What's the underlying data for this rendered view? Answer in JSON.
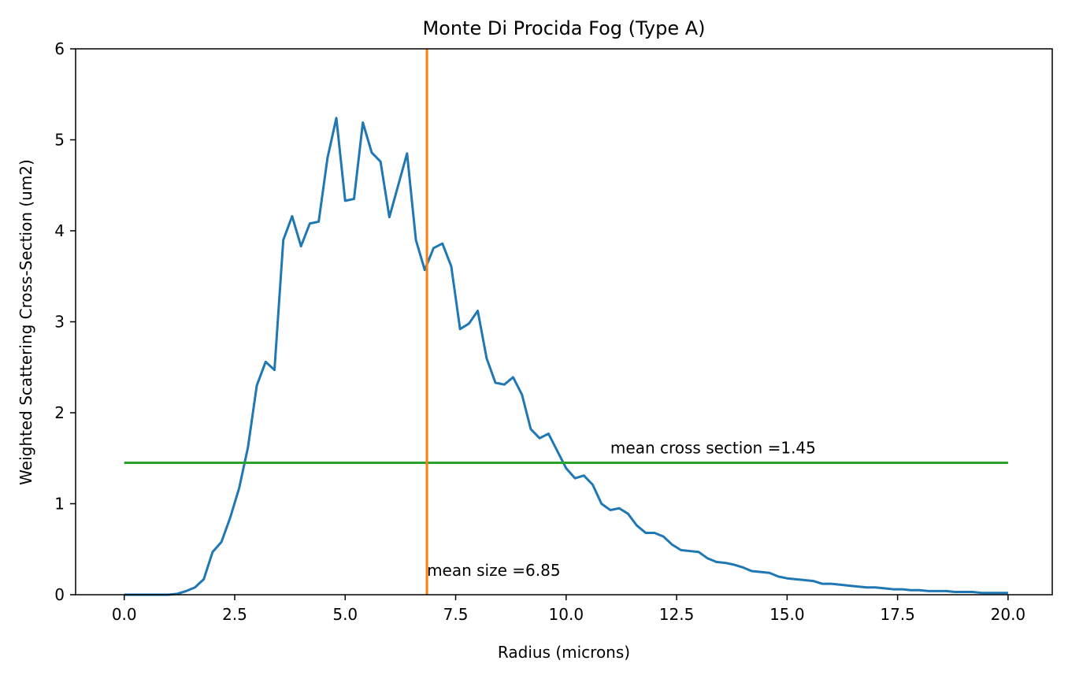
{
  "chart_data": {
    "type": "line",
    "title": "Monte Di Procida Fog (Type A)",
    "xlabel": "Radius (microns)",
    "ylabel": "Weighted Scattering Cross-Section (um2)",
    "xlim": [
      -1.1,
      21.0
    ],
    "ylim": [
      0,
      6
    ],
    "xticks": [
      0.0,
      2.5,
      5.0,
      7.5,
      10.0,
      12.5,
      15.0,
      17.5,
      20.0
    ],
    "xtick_labels": [
      "0.0",
      "2.5",
      "5.0",
      "7.5",
      "10.0",
      "12.5",
      "15.0",
      "17.5",
      "20.0"
    ],
    "yticks": [
      0,
      1,
      2,
      3,
      4,
      5,
      6
    ],
    "ytick_labels": [
      "0",
      "1",
      "2",
      "3",
      "4",
      "5",
      "6"
    ],
    "grid": false,
    "series": [
      {
        "color": "#1f77b4",
        "x": [
          0.0,
          0.2,
          0.4,
          0.6,
          0.8,
          1.0,
          1.2,
          1.4,
          1.6,
          1.8,
          2.0,
          2.2,
          2.4,
          2.6,
          2.8,
          3.0,
          3.2,
          3.4,
          3.6,
          3.8,
          4.0,
          4.2,
          4.4,
          4.6,
          4.8,
          5.0,
          5.2,
          5.4,
          5.6,
          5.8,
          6.0,
          6.2,
          6.4,
          6.6,
          6.8,
          7.0,
          7.2,
          7.4,
          7.6,
          7.8,
          8.0,
          8.2,
          8.4,
          8.6,
          8.8,
          9.0,
          9.2,
          9.4,
          9.6,
          9.8,
          10.0,
          10.2,
          10.4,
          10.6,
          10.8,
          11.0,
          11.2,
          11.4,
          11.6,
          11.8,
          12.0,
          12.2,
          12.4,
          12.6,
          12.8,
          13.0,
          13.2,
          13.4,
          13.6,
          13.8,
          14.0,
          14.2,
          14.4,
          14.6,
          14.8,
          15.0,
          15.2,
          15.4,
          15.6,
          15.8,
          16.0,
          16.2,
          16.4,
          16.6,
          16.8,
          17.0,
          17.2,
          17.4,
          17.6,
          17.8,
          18.0,
          18.2,
          18.4,
          18.6,
          18.8,
          19.0,
          19.2,
          19.4,
          19.6,
          19.8,
          20.0
        ],
        "y": [
          0.0,
          0.0,
          0.0,
          0.0,
          0.0,
          0.0,
          0.01,
          0.04,
          0.08,
          0.17,
          0.47,
          0.58,
          0.85,
          1.17,
          1.62,
          2.3,
          2.56,
          2.47,
          3.9,
          4.16,
          3.83,
          4.08,
          4.1,
          4.8,
          5.24,
          4.33,
          4.35,
          5.19,
          4.86,
          4.76,
          4.15,
          4.5,
          4.85,
          3.9,
          3.57,
          3.81,
          3.86,
          3.61,
          2.92,
          2.98,
          3.12,
          2.6,
          2.33,
          2.31,
          2.39,
          2.2,
          1.82,
          1.72,
          1.77,
          1.58,
          1.39,
          1.28,
          1.31,
          1.21,
          1.0,
          0.93,
          0.95,
          0.89,
          0.76,
          0.68,
          0.68,
          0.64,
          0.55,
          0.49,
          0.48,
          0.47,
          0.4,
          0.36,
          0.35,
          0.33,
          0.3,
          0.26,
          0.25,
          0.24,
          0.2,
          0.18,
          0.17,
          0.16,
          0.15,
          0.12,
          0.12,
          0.11,
          0.1,
          0.09,
          0.08,
          0.08,
          0.07,
          0.06,
          0.06,
          0.05,
          0.05,
          0.04,
          0.04,
          0.04,
          0.03,
          0.03,
          0.03,
          0.02,
          0.02,
          0.02,
          0.02
        ]
      }
    ],
    "mean_size": {
      "value": 6.85,
      "color": "#ff7f0e",
      "label": "mean size =6.85"
    },
    "mean_cross_section": {
      "value": 1.45,
      "x_range": [
        0,
        20
      ],
      "color": "#2ca02c",
      "label": "mean cross section =1.45",
      "label_x": 11.0
    }
  }
}
